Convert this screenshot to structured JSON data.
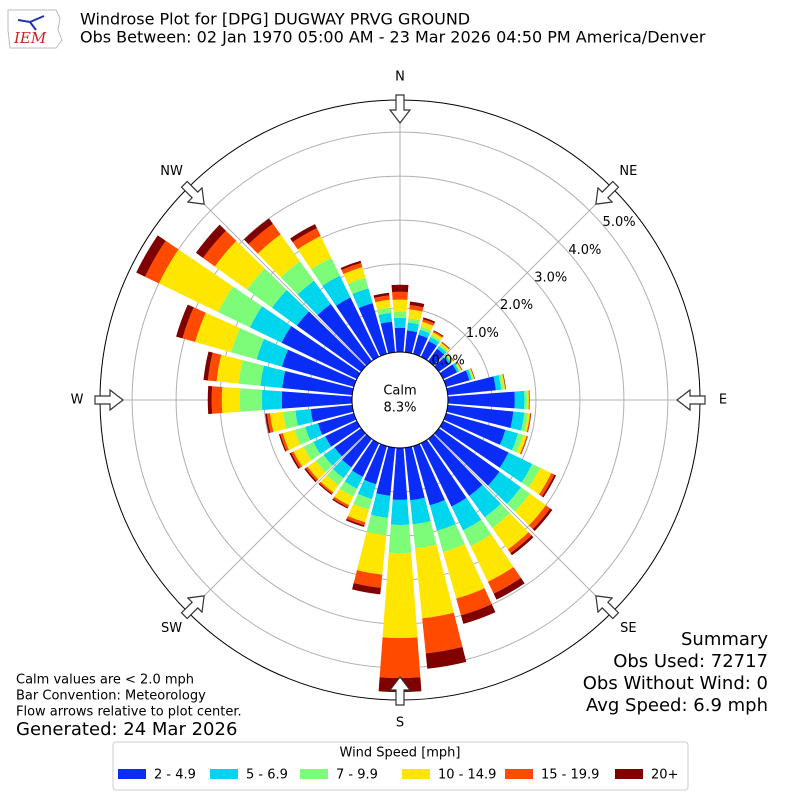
{
  "chart_data": {
    "type": "windrose",
    "logo_text": "IEM",
    "title": "Windrose Plot for [DPG] DUGWAY PRVG GROUND",
    "subtitle": "Obs Between: 02 Jan 1970 05:00 AM - 23 Mar 2026 04:50 PM America/Denver",
    "x": [
      0,
      10,
      20,
      30,
      40,
      50,
      60,
      70,
      80,
      90,
      100,
      110,
      120,
      130,
      140,
      150,
      160,
      170,
      180,
      190,
      200,
      210,
      220,
      230,
      240,
      250,
      260,
      270,
      280,
      290,
      300,
      310,
      320,
      330,
      340,
      350
    ],
    "xticks": [
      {
        "value": 0,
        "label": "N"
      },
      {
        "value": 45,
        "label": "NE"
      },
      {
        "value": 90,
        "label": "E"
      },
      {
        "value": 135,
        "label": "SE"
      },
      {
        "value": 180,
        "label": "S"
      },
      {
        "value": 225,
        "label": "SW"
      },
      {
        "value": 270,
        "label": "W"
      },
      {
        "value": 315,
        "label": "NW"
      }
    ],
    "rlim": [
      0,
      5.73
    ],
    "rticks": [
      {
        "value": 0,
        "label": "0.0%"
      },
      {
        "value": 1,
        "label": "1.0%"
      },
      {
        "value": 2,
        "label": "2.0%"
      },
      {
        "value": 3,
        "label": "3.0%"
      },
      {
        "value": 4,
        "label": "4.0%"
      },
      {
        "value": 5,
        "label": "5.0%"
      }
    ],
    "grid": true,
    "calm_label": "Calm",
    "calm_value": 8.3,
    "calm_value_label": "8.3%",
    "legend_title": "Wind Speed [mph]",
    "legend_position": "bottom",
    "series": [
      {
        "name": "2 - 4.9",
        "color": "#0a2cf7",
        "values": [
          0.55,
          0.5,
          0.45,
          0.4,
          0.35,
          0.3,
          0.35,
          0.55,
          1.1,
          1.52,
          1.5,
          1.4,
          1.65,
          1.7,
          1.6,
          1.6,
          1.4,
          1.2,
          1.18,
          1.1,
          0.9,
          0.85,
          0.8,
          0.75,
          0.8,
          0.85,
          0.95,
          1.6,
          1.6,
          1.7,
          1.9,
          1.8,
          1.6,
          1.5,
          1.2,
          0.7
        ]
      },
      {
        "name": "5 - 6.9",
        "color": "#00d5ee",
        "values": [
          0.23,
          0.18,
          0.12,
          0.1,
          0.07,
          0.05,
          0.05,
          0.06,
          0.12,
          0.22,
          0.25,
          0.3,
          0.6,
          0.6,
          0.6,
          0.6,
          0.6,
          0.55,
          0.57,
          0.5,
          0.35,
          0.3,
          0.3,
          0.3,
          0.3,
          0.3,
          0.35,
          0.45,
          0.5,
          0.6,
          0.8,
          0.7,
          0.65,
          0.55,
          0.35,
          0.2
        ]
      },
      {
        "name": "7 - 9.9",
        "color": "#7dfc7a",
        "values": [
          0.14,
          0.1,
          0.07,
          0.05,
          0.04,
          0.03,
          0.03,
          0.03,
          0.05,
          0.06,
          0.08,
          0.12,
          0.2,
          0.25,
          0.3,
          0.4,
          0.5,
          0.55,
          0.64,
          0.4,
          0.25,
          0.2,
          0.2,
          0.22,
          0.25,
          0.25,
          0.28,
          0.5,
          0.5,
          0.6,
          0.8,
          0.7,
          0.55,
          0.45,
          0.25,
          0.12
        ]
      },
      {
        "name": "10 - 14.9",
        "color": "#ffe600",
        "values": [
          0.27,
          0.2,
          0.12,
          0.07,
          0.05,
          0.03,
          0.03,
          0.02,
          0.04,
          0.04,
          0.05,
          0.08,
          0.28,
          0.45,
          0.6,
          0.9,
          1.1,
          1.6,
          1.93,
          0.9,
          0.3,
          0.22,
          0.2,
          0.23,
          0.25,
          0.28,
          0.3,
          0.41,
          0.5,
          0.85,
          1.5,
          0.9,
          0.75,
          0.55,
          0.25,
          0.18
        ]
      },
      {
        "name": "15 - 19.9",
        "color": "#ff4a00",
        "values": [
          0.18,
          0.1,
          0.06,
          0.03,
          0.02,
          0.01,
          0.01,
          0.01,
          0.01,
          0.01,
          0.02,
          0.02,
          0.08,
          0.12,
          0.1,
          0.3,
          0.4,
          0.8,
          0.91,
          0.3,
          0.07,
          0.05,
          0.04,
          0.05,
          0.06,
          0.06,
          0.07,
          0.23,
          0.2,
          0.3,
          0.35,
          0.33,
          0.3,
          0.2,
          0.1,
          0.1
        ]
      },
      {
        "name": "20+",
        "color": "#800000",
        "values": [
          0.16,
          0.08,
          0.04,
          0.02,
          0.01,
          0.01,
          0.01,
          0.01,
          0.01,
          0.01,
          0.01,
          0.01,
          0.04,
          0.06,
          0.06,
          0.15,
          0.2,
          0.35,
          0.32,
          0.15,
          0.04,
          0.03,
          0.03,
          0.04,
          0.04,
          0.03,
          0.04,
          0.09,
          0.1,
          0.15,
          0.22,
          0.2,
          0.15,
          0.1,
          0.05,
          0.06
        ]
      }
    ],
    "summary_title": "Summary",
    "summary_lines": [
      "Obs Used: 72717",
      "Obs Without Wind: 0",
      "Avg Speed: 6.9 mph"
    ],
    "notes": [
      "Calm values are < 2.0 mph",
      "Bar Convention: Meteorology",
      "Flow arrows relative to plot center."
    ],
    "generated": "Generated: 24 Mar 2026"
  }
}
